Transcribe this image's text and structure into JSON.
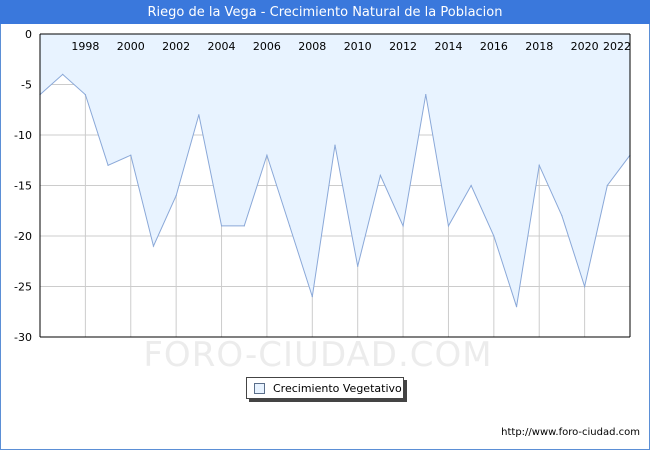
{
  "title": "Riego de la Vega - Crecimiento Natural de la Poblacion",
  "watermark": "FORO-CIUDAD.COM",
  "credit": "http://www.foro-ciudad.com",
  "colors": {
    "titlebar": "#3a78dc",
    "area_fill": "#e8f3ff",
    "line": "#8aa8d8",
    "grid": "#cccccc",
    "watermark": "#ececec"
  },
  "chart_data": {
    "type": "area",
    "title": "Riego de la Vega - Crecimiento Natural de la Poblacion",
    "xlabel": "",
    "ylabel": "",
    "x": [
      1996,
      1997,
      1998,
      1999,
      2000,
      2001,
      2002,
      2003,
      2004,
      2005,
      2006,
      2007,
      2008,
      2009,
      2010,
      2011,
      2012,
      2013,
      2014,
      2015,
      2016,
      2017,
      2018,
      2019,
      2020,
      2021,
      2022
    ],
    "x_ticks": [
      "1998",
      "2000",
      "2002",
      "2004",
      "2006",
      "2008",
      "2010",
      "2012",
      "2014",
      "2016",
      "2018",
      "2020",
      "2022"
    ],
    "y_ticks": [
      "0",
      "-5",
      "-10",
      "-15",
      "-20",
      "-25",
      "-30"
    ],
    "ylim": [
      -30,
      0
    ],
    "xlim": [
      1996,
      2022
    ],
    "grid": true,
    "legend_position": "bottom-center",
    "series": [
      {
        "name": "Crecimiento Vegetativo",
        "values": [
          -6,
          -4,
          -6,
          -13,
          -12,
          -21,
          -16,
          -8,
          -19,
          -19,
          -12,
          -19,
          -26,
          -11,
          -23,
          -14,
          -19,
          -6,
          -19,
          -15,
          -20,
          -27,
          -13,
          -18,
          -25,
          -15,
          -12
        ]
      }
    ]
  }
}
